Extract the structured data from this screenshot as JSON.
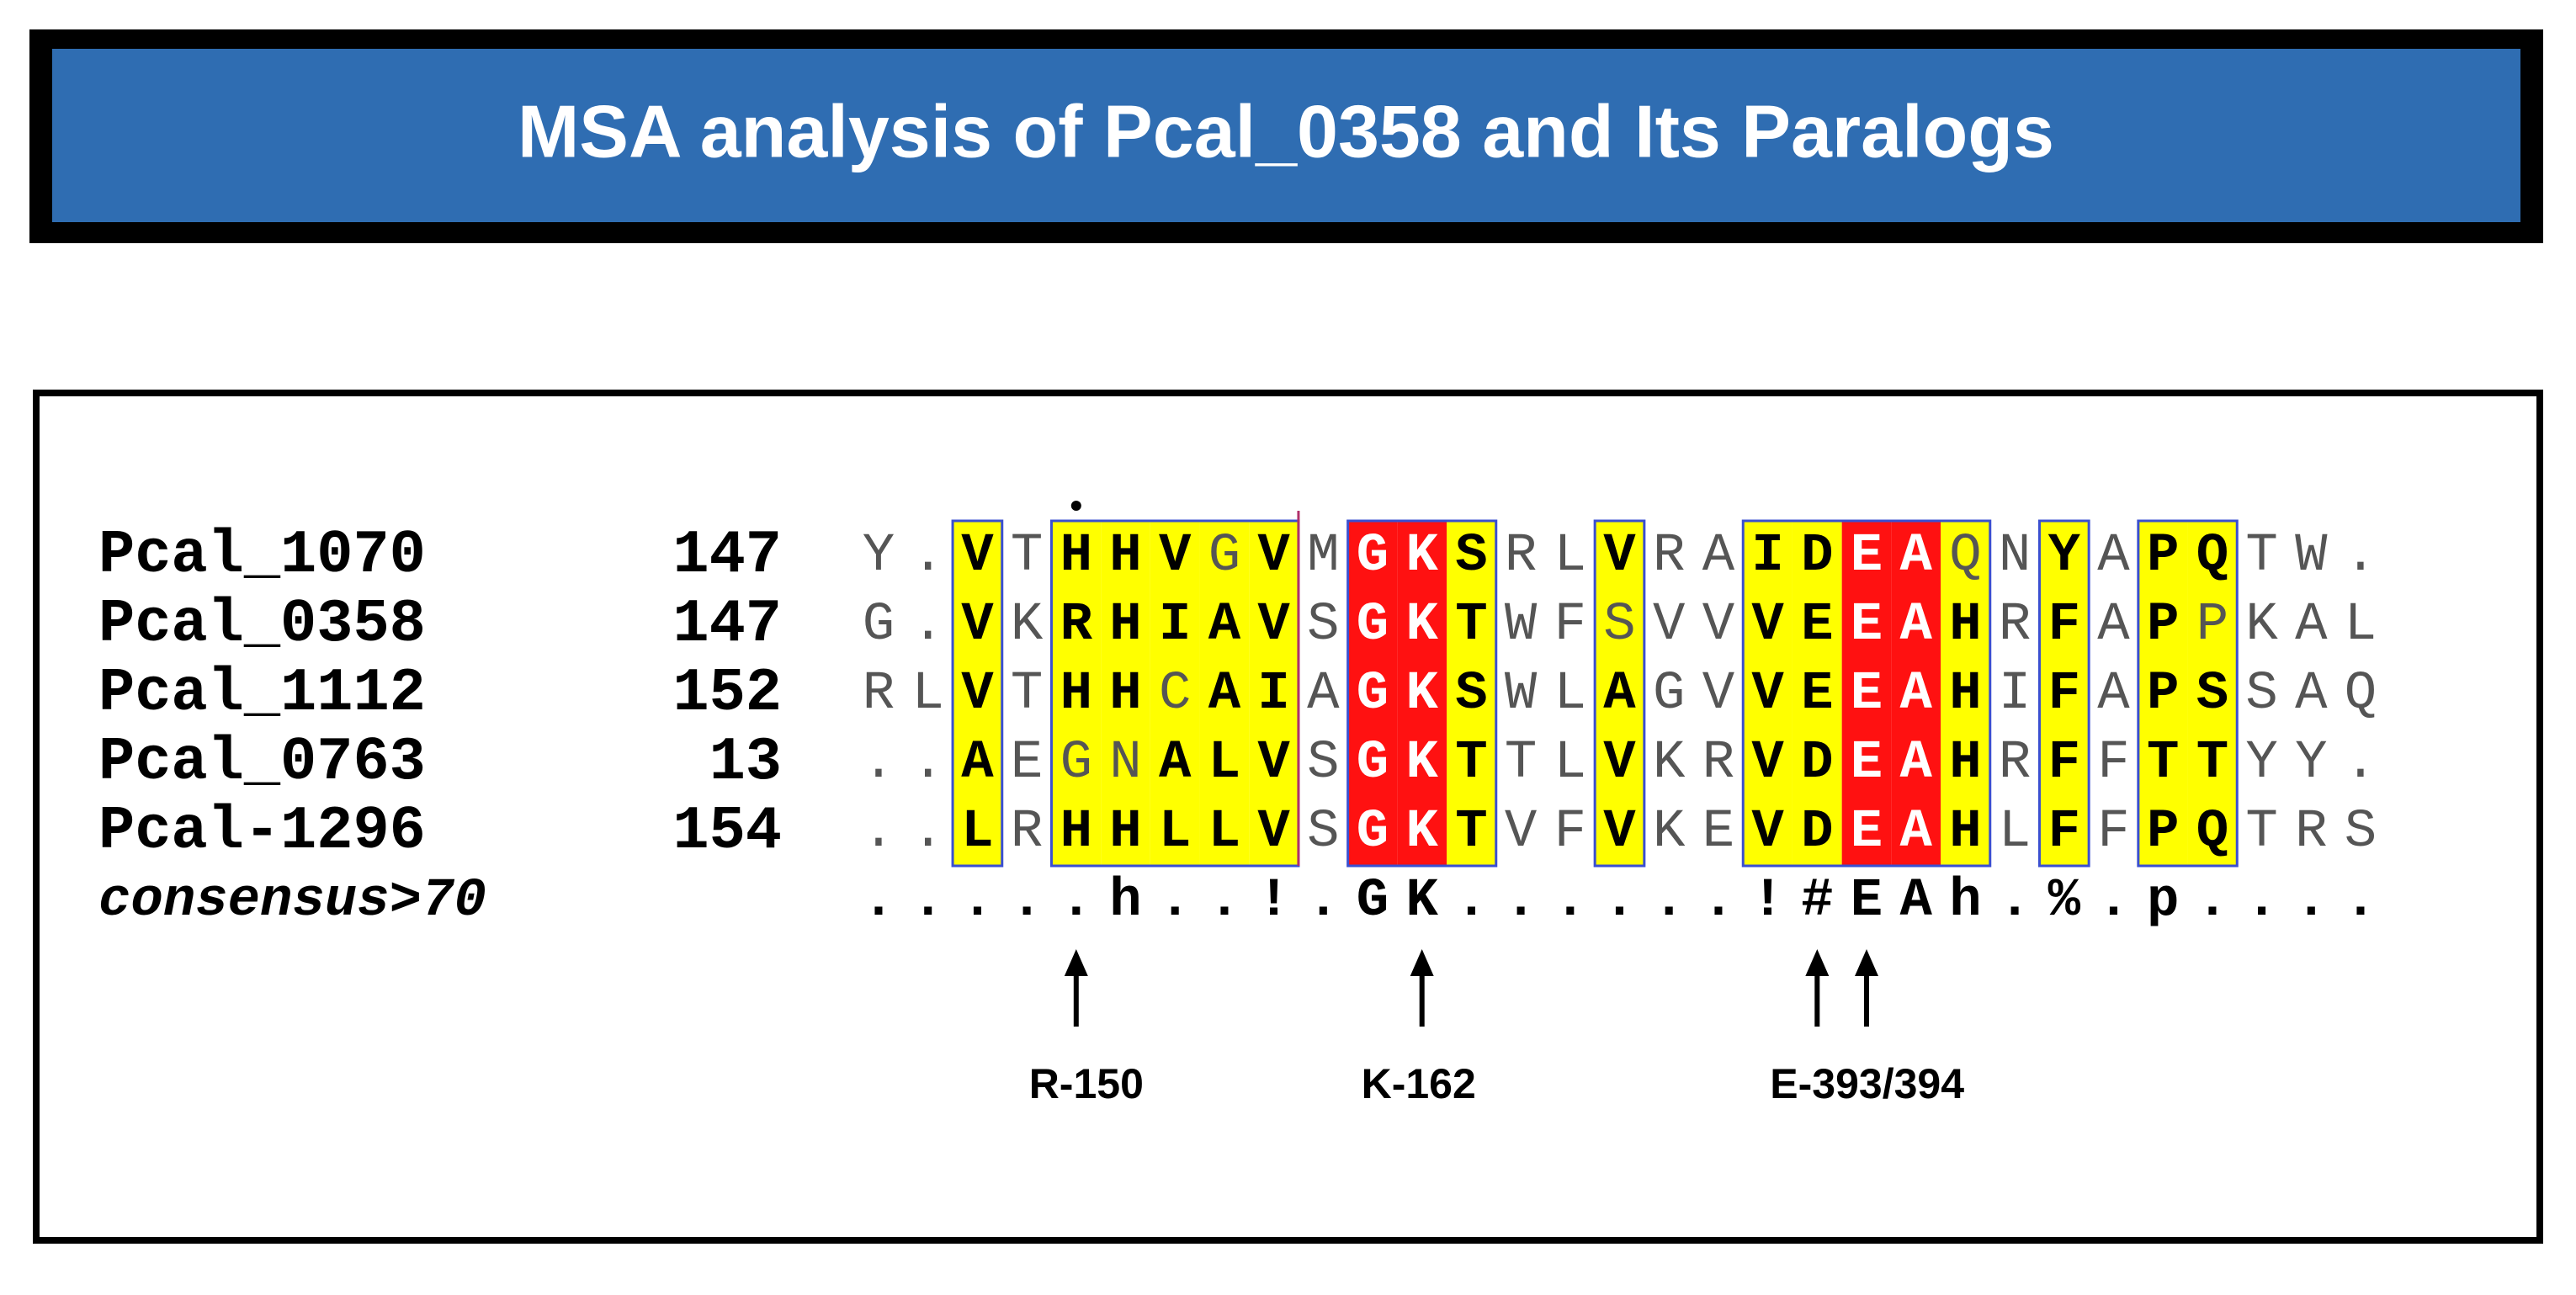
{
  "header": {
    "title": "MSA analysis of Pcal_0358 and Its Paralogs"
  },
  "alignment": {
    "rows": [
      {
        "name": "Pcal_1070",
        "start": "147",
        "residues": [
          "Y",
          ".",
          "V",
          "T",
          "H",
          "H",
          "V",
          "G",
          "V",
          "M",
          "G",
          "K",
          "S",
          "R",
          "L",
          "V",
          "R",
          "A",
          "I",
          "D",
          "E",
          "A",
          "Q",
          "N",
          "Y",
          "A",
          "P",
          "Q",
          "T",
          "W",
          "."
        ]
      },
      {
        "name": "Pcal_0358",
        "start": "147",
        "residues": [
          "G",
          ".",
          "V",
          "K",
          "R",
          "H",
          "I",
          "A",
          "V",
          "S",
          "G",
          "K",
          "T",
          "W",
          "F",
          "S",
          "V",
          "V",
          "V",
          "E",
          "E",
          "A",
          "H",
          "R",
          "F",
          "A",
          "P",
          "P",
          "K",
          "A",
          "L"
        ]
      },
      {
        "name": "Pcal_1112",
        "start": "152",
        "residues": [
          "R",
          "L",
          "V",
          "T",
          "H",
          "H",
          "C",
          "A",
          "I",
          "A",
          "G",
          "K",
          "S",
          "W",
          "L",
          "A",
          "G",
          "V",
          "V",
          "E",
          "E",
          "A",
          "H",
          "I",
          "F",
          "A",
          "P",
          "S",
          "S",
          "A",
          "Q"
        ]
      },
      {
        "name": "Pcal_0763",
        "start": "13",
        "residues": [
          ".",
          ".",
          "A",
          "E",
          "G",
          "N",
          "A",
          "L",
          "V",
          "S",
          "G",
          "K",
          "T",
          "T",
          "L",
          "V",
          "K",
          "R",
          "V",
          "D",
          "E",
          "A",
          "H",
          "R",
          "F",
          "F",
          "T",
          "T",
          "Y",
          "Y",
          "."
        ]
      },
      {
        "name": "Pcal-1296",
        "start": "154",
        "residues": [
          ".",
          ".",
          "L",
          "R",
          "H",
          "H",
          "L",
          "L",
          "V",
          "S",
          "G",
          "K",
          "T",
          "V",
          "F",
          "V",
          "K",
          "E",
          "V",
          "D",
          "E",
          "A",
          "H",
          "L",
          "F",
          "F",
          "P",
          "Q",
          "T",
          "R",
          "S"
        ]
      }
    ],
    "consensus": {
      "name": "consensus>70",
      "residues": [
        ".",
        ".",
        ".",
        ".",
        ".",
        "h",
        ".",
        ".",
        "!",
        ".",
        "G",
        "K",
        ".",
        ".",
        ".",
        ".",
        ".",
        ".",
        "!",
        "#",
        "E",
        "A",
        "h",
        ".",
        "%",
        ".",
        "p",
        ".",
        ".",
        ".",
        "."
      ]
    }
  },
  "annotations": [
    {
      "label": "R-150"
    },
    {
      "label": "K-162"
    },
    {
      "label": "E-393/394"
    }
  ]
}
